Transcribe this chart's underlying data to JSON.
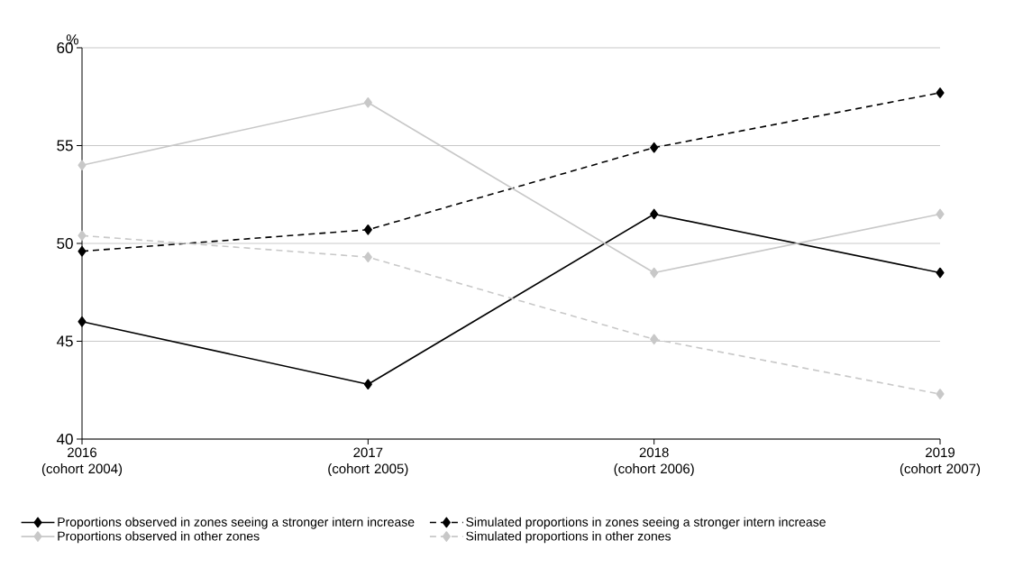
{
  "chart_data": {
    "type": "line",
    "ylabel": "%",
    "categories": [
      "2016\n(cohort 2004)",
      "2017\n(cohort 2005)",
      "2018\n(cohort 2006)",
      "2019\n(cohort 2007)"
    ],
    "series": [
      {
        "name": "Proportions observed in zones seeing a stronger intern increase",
        "color": "#000000",
        "line_style": "solid",
        "values": [
          46.0,
          42.8,
          51.5,
          48.5
        ]
      },
      {
        "name": "Simulated proportions in zones seeing a stronger intern increase",
        "color": "#000000",
        "line_style": "dashed",
        "values": [
          49.6,
          50.7,
          54.9,
          57.7
        ]
      },
      {
        "name": "Proportions observed in other zones",
        "color": "#c8c8c8",
        "line_style": "solid",
        "values": [
          54.0,
          57.2,
          48.5,
          51.5
        ]
      },
      {
        "name": "Simulated proportions in other zones",
        "color": "#c8c8c8",
        "line_style": "dashed",
        "values": [
          50.4,
          49.3,
          45.1,
          42.3
        ]
      }
    ],
    "ylim": [
      40,
      60
    ],
    "yticks": [
      40,
      45,
      50,
      55,
      60
    ],
    "grid": "y",
    "legend": "bottom",
    "marker": "diamond"
  }
}
